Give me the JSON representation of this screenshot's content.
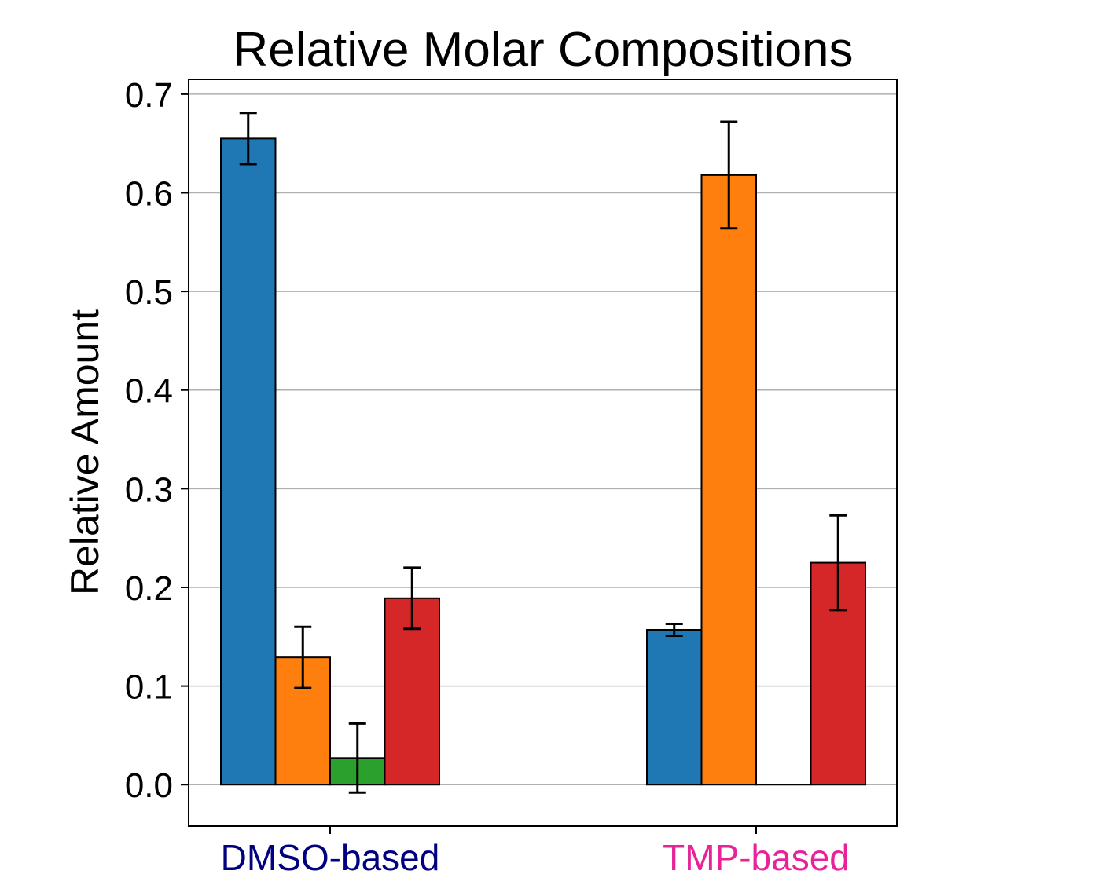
{
  "chart_data": {
    "type": "bar",
    "title": "Relative Molar Compositions",
    "xlabel": "",
    "ylabel": "Relative Amount",
    "ylim": [
      -0.042,
      0.715
    ],
    "yticks": [
      0.0,
      0.1,
      0.2,
      0.3,
      0.4,
      0.5,
      0.6,
      0.7
    ],
    "ytick_labels": [
      "0.0",
      "0.1",
      "0.2",
      "0.3",
      "0.4",
      "0.5",
      "0.6",
      "0.7"
    ],
    "grid": "horizontal",
    "legend": "none",
    "categories": [
      "DMSO-based",
      "TMP-based"
    ],
    "category_label_colors": [
      "#000080",
      "#E8239A"
    ],
    "series": [
      {
        "color": "#1f77b4",
        "values": [
          0.655,
          0.157
        ],
        "errors": [
          0.026,
          0.006
        ]
      },
      {
        "color": "#ff7f0e",
        "values": [
          0.129,
          0.618
        ],
        "errors": [
          0.031,
          0.054
        ]
      },
      {
        "color": "#2ca02c",
        "values": [
          0.027,
          0.0
        ],
        "errors": [
          0.035,
          0.0
        ]
      },
      {
        "color": "#d62728",
        "values": [
          0.189,
          0.225
        ],
        "errors": [
          0.031,
          0.048
        ]
      }
    ]
  }
}
